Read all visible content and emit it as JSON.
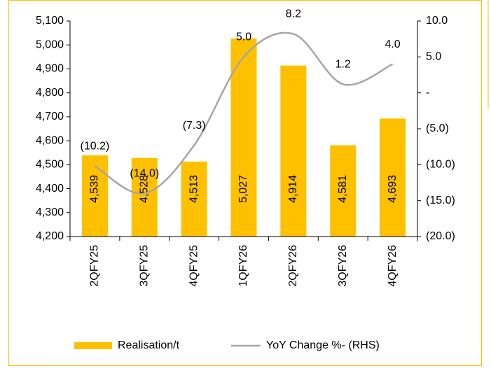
{
  "chart_data": {
    "type": "bar_line",
    "categories": [
      "2QFY25",
      "3QFY25",
      "4QFY25",
      "1QFY26",
      "2QFY26",
      "3QFY26",
      "4QFY26"
    ],
    "series": [
      {
        "name": "Realisation/t",
        "type": "bar",
        "color": "#FFC000",
        "values": [
          4539,
          4528,
          4513,
          5027,
          4914,
          4581,
          4693
        ],
        "value_labels": [
          "4,539",
          "4,528",
          "4,513",
          "5,027",
          "4,914",
          "4,581",
          "4,693"
        ]
      },
      {
        "name": "YoY Change %- (RHS)",
        "type": "line",
        "axis": "y2",
        "color": "#A6A6A6",
        "values": [
          -10.2,
          -14.0,
          -7.3,
          5.0,
          8.2,
          1.2,
          4.0
        ],
        "value_labels": [
          "(10.2)",
          "(14.0)",
          "(7.3)",
          "5.0",
          "8.2",
          "1.2",
          "4.0"
        ]
      }
    ],
    "ylim": [
      4200,
      5100
    ],
    "yticks": [
      {
        "value": 4200,
        "label": "4,200"
      },
      {
        "value": 4300,
        "label": "4,300"
      },
      {
        "value": 4400,
        "label": "4,400"
      },
      {
        "value": 4500,
        "label": "4,500"
      },
      {
        "value": 4600,
        "label": "4,600"
      },
      {
        "value": 4700,
        "label": "4,700"
      },
      {
        "value": 4800,
        "label": "4,800"
      },
      {
        "value": 4900,
        "label": "4,900"
      },
      {
        "value": 5000,
        "label": "5,000"
      },
      {
        "value": 5100,
        "label": "5,100"
      }
    ],
    "y2lim": [
      -20,
      10
    ],
    "y2ticks": [
      {
        "value": -20,
        "label": "(20.0)"
      },
      {
        "value": -15,
        "label": "(15.0)"
      },
      {
        "value": -10,
        "label": "(10.0)"
      },
      {
        "value": -5,
        "label": "(5.0)"
      },
      {
        "value": 0,
        "label": "-"
      },
      {
        "value": 5,
        "label": "5.0"
      },
      {
        "value": 10,
        "label": "10.0"
      }
    ],
    "legend": "bottom"
  }
}
